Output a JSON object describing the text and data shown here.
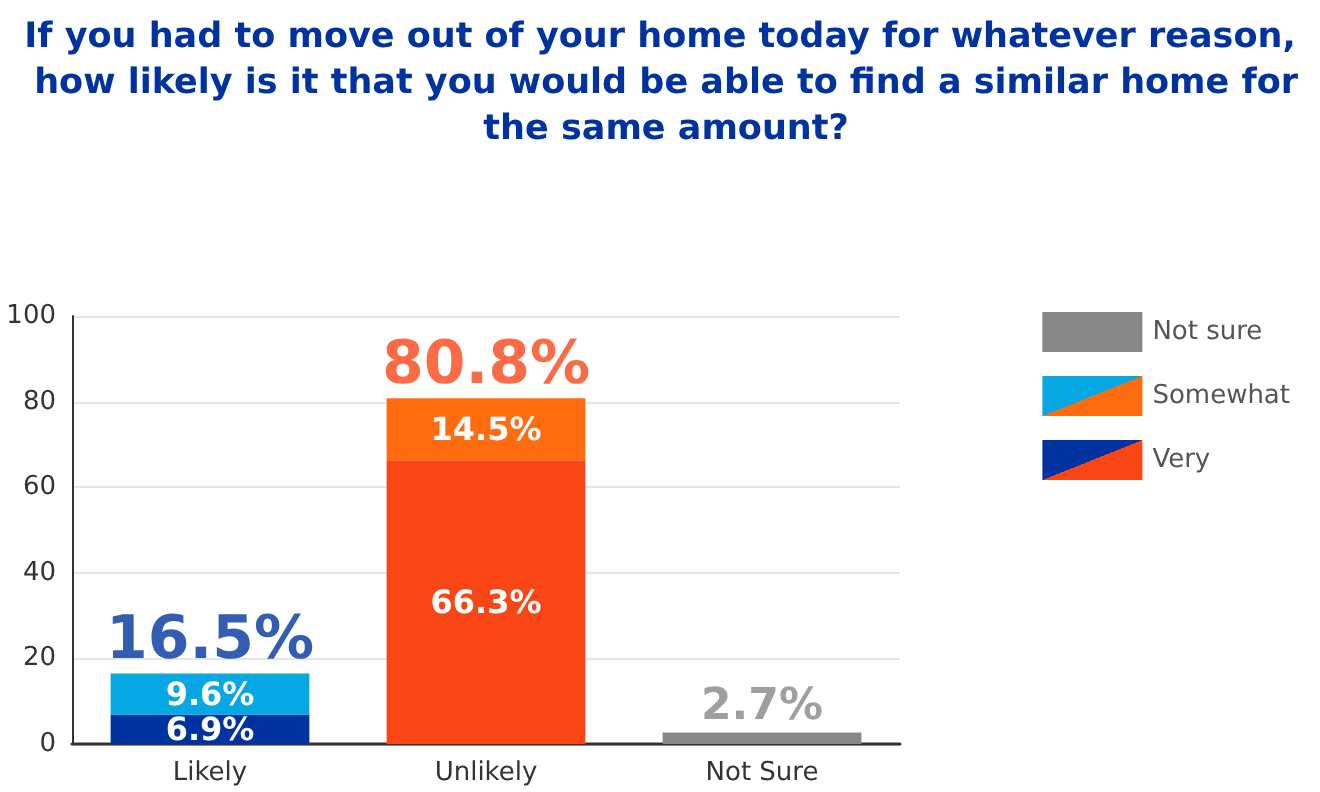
{
  "chart_data": {
    "type": "bar",
    "title": "If you had to move out of your home today for whatever reason, how likely is it that you would be able to find a similar home for the same amount?",
    "categories": [
      "Likely",
      "Unlikely",
      "Not Sure"
    ],
    "stacked": true,
    "series": [
      {
        "name": "Very",
        "colors": [
          "#0033a0",
          "#fa4616",
          null
        ],
        "values": [
          6.9,
          66.3,
          null
        ],
        "value_labels": [
          "6.9%",
          "66.3%",
          null
        ]
      },
      {
        "name": "Somewhat",
        "colors": [
          "#06a7e2",
          "#ff6d10",
          null
        ],
        "values": [
          9.6,
          14.5,
          null
        ],
        "value_labels": [
          "9.6%",
          "14.5%",
          null
        ]
      },
      {
        "name": "Not sure",
        "color": "#878787",
        "values": [
          null,
          null,
          2.7
        ]
      }
    ],
    "totals": [
      "16.5%",
      "80.8%",
      "2.7%"
    ],
    "ylim": [
      0,
      100
    ],
    "yticks": [
      0,
      20,
      40,
      60,
      80,
      100
    ],
    "grid": "y",
    "legend": "right"
  }
}
